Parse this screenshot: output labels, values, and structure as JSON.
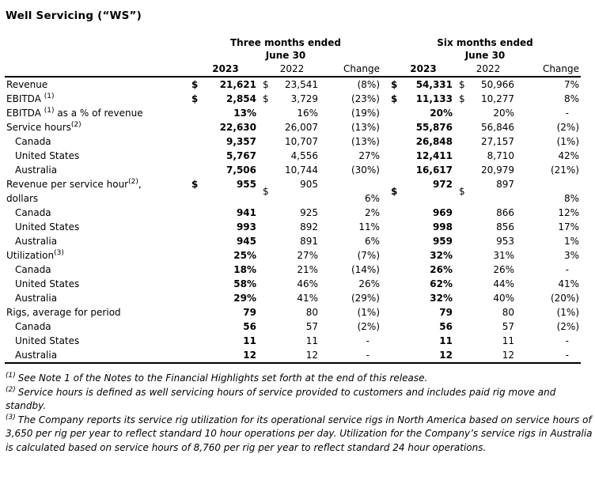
{
  "title": "Well Servicing (“WS”)",
  "currency_symbol": "$",
  "table": {
    "groups": [
      {
        "title": "Three months ended",
        "subtitle": "June 30"
      },
      {
        "title": "Six months ended",
        "subtitle": "June 30"
      }
    ],
    "year_headers": [
      "2023",
      "2022",
      "Change",
      "2023",
      "2022",
      "Change"
    ],
    "rows": [
      {
        "label": "Revenue",
        "sup": "",
        "post": "",
        "indent": false,
        "dollar": true,
        "tall": false,
        "cells": [
          "21,621",
          "23,541",
          "(8%)",
          "54,331",
          "50,966",
          "7%"
        ]
      },
      {
        "label": "EBITDA ",
        "sup": "(1)",
        "post": "",
        "indent": false,
        "dollar": true,
        "tall": false,
        "cells": [
          "2,854",
          "3,729",
          "(23%)",
          "11,133",
          "10,277",
          "8%"
        ]
      },
      {
        "label": "EBITDA ",
        "sup": "(1)",
        "post": " as a % of revenue",
        "indent": false,
        "dollar": false,
        "tall": false,
        "cells": [
          "13%",
          "16%",
          "(19%)",
          "20%",
          "20%",
          "-"
        ]
      },
      {
        "label": "Service hours",
        "sup": "(2)",
        "post": "",
        "indent": false,
        "dollar": false,
        "tall": false,
        "cells": [
          "22,630",
          "26,007",
          "(13%)",
          "55,876",
          "56,846",
          "(2%)"
        ]
      },
      {
        "label": "Canada",
        "sup": "",
        "post": "",
        "indent": true,
        "dollar": false,
        "tall": false,
        "cells": [
          "9,357",
          "10,707",
          "(13%)",
          "26,848",
          "27,157",
          "(1%)"
        ]
      },
      {
        "label": "United States",
        "sup": "",
        "post": "",
        "indent": true,
        "dollar": false,
        "tall": false,
        "cells": [
          "5,767",
          "4,556",
          "27%",
          "12,411",
          "8,710",
          "42%"
        ]
      },
      {
        "label": "Australia",
        "sup": "",
        "post": "",
        "indent": true,
        "dollar": false,
        "tall": false,
        "cells": [
          "7,506",
          "10,744",
          "(30%)",
          "16,617",
          "20,979",
          "(21%)"
        ]
      },
      {
        "label": "Revenue per service hour",
        "sup": "(2)",
        "post": ",",
        "label2": "dollars",
        "indent": false,
        "dollar": true,
        "tall": true,
        "cells": [
          "955",
          "905",
          "6%",
          "972",
          "897",
          "8%"
        ]
      },
      {
        "label": "Canada",
        "sup": "",
        "post": "",
        "indent": true,
        "dollar": false,
        "tall": false,
        "cells": [
          "941",
          "925",
          "2%",
          "969",
          "866",
          "12%"
        ]
      },
      {
        "label": "United States",
        "sup": "",
        "post": "",
        "indent": true,
        "dollar": false,
        "tall": false,
        "cells": [
          "993",
          "892",
          "11%",
          "998",
          "856",
          "17%"
        ]
      },
      {
        "label": "Australia",
        "sup": "",
        "post": "",
        "indent": true,
        "dollar": false,
        "tall": false,
        "cells": [
          "945",
          "891",
          "6%",
          "959",
          "953",
          "1%"
        ]
      },
      {
        "label": "Utilization",
        "sup": "(3)",
        "post": "",
        "indent": false,
        "dollar": false,
        "tall": false,
        "cells": [
          "25%",
          "27%",
          "(7%)",
          "32%",
          "31%",
          "3%"
        ]
      },
      {
        "label": "Canada",
        "sup": "",
        "post": "",
        "indent": true,
        "dollar": false,
        "tall": false,
        "cells": [
          "18%",
          "21%",
          "(14%)",
          "26%",
          "26%",
          "-"
        ]
      },
      {
        "label": "United States",
        "sup": "",
        "post": "",
        "indent": true,
        "dollar": false,
        "tall": false,
        "cells": [
          "58%",
          "46%",
          "26%",
          "62%",
          "44%",
          "41%"
        ]
      },
      {
        "label": "Australia",
        "sup": "",
        "post": "",
        "indent": true,
        "dollar": false,
        "tall": false,
        "cells": [
          "29%",
          "41%",
          "(29%)",
          "32%",
          "40%",
          "(20%)"
        ]
      },
      {
        "label": "Rigs, average for period",
        "sup": "",
        "post": "",
        "indent": false,
        "dollar": false,
        "tall": false,
        "cells": [
          "79",
          "80",
          "(1%)",
          "79",
          "80",
          "(1%)"
        ]
      },
      {
        "label": "Canada",
        "sup": "",
        "post": "",
        "indent": true,
        "dollar": false,
        "tall": false,
        "cells": [
          "56",
          "57",
          "(2%)",
          "56",
          "57",
          "(2%)"
        ]
      },
      {
        "label": "United States",
        "sup": "",
        "post": "",
        "indent": true,
        "dollar": false,
        "tall": false,
        "cells": [
          "11",
          "11",
          "-",
          "11",
          "11",
          "-"
        ]
      },
      {
        "label": "Australia",
        "sup": "",
        "post": "",
        "indent": true,
        "dollar": false,
        "tall": false,
        "cells": [
          "12",
          "12",
          "-",
          "12",
          "12",
          "-"
        ]
      }
    ]
  },
  "footnotes": [
    {
      "marker": "(1)",
      "text": "See Note 1 of the Notes to the Financial Highlights set forth at the end of this release."
    },
    {
      "marker": "(2)",
      "text": "Service hours is defined as well servicing hours of service provided to customers and includes paid rig move and standby."
    },
    {
      "marker": "(3)",
      "text": "The Company reports its service rig utilization for its operational service rigs in North America based on service hours of 3,650 per rig per year to reflect standard 10 hour operations per day. Utilization for the Company’s service rigs in Australia is calculated based on service hours of 8,760 per rig per year to reflect standard 24 hour operations."
    }
  ]
}
